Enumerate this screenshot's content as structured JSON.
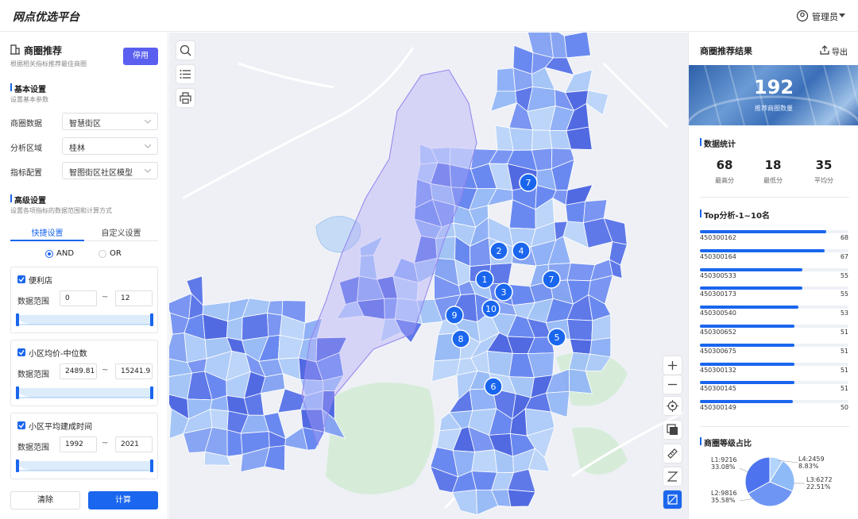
{
  "header": {
    "title": "网点优选平台",
    "user": "管理员"
  },
  "left_panel": {
    "title": "商圈推荐",
    "subtitle": "根据相关指标推荐最佳商圈",
    "toggle_button": "停用",
    "basic": {
      "title": "基本设置",
      "subtitle": "设置基本参数",
      "fields": [
        {
          "label": "商圈数据",
          "value": "智慧街区"
        },
        {
          "label": "分析区域",
          "value": "桂林"
        },
        {
          "label": "指标配置",
          "value": "智图街区社区模型"
        }
      ]
    },
    "advanced": {
      "title": "高级设置",
      "subtitle": "设置各项指标的数据范围和计算方式",
      "tabs": [
        "快捷设置",
        "自定义设置"
      ],
      "logic": [
        "AND",
        "OR"
      ],
      "separator": "~",
      "filters": [
        {
          "name": "便利店",
          "range_label": "数据范围",
          "min": "0",
          "max": "12"
        },
        {
          "name": "小区均价-中位数",
          "range_label": "数据范围",
          "min": "2489.81",
          "max": "15241.9"
        },
        {
          "name": "小区平均建成时间",
          "range_label": "数据范围",
          "min": "1992",
          "max": "2021"
        }
      ]
    },
    "buttons": [
      "清除",
      "计算"
    ]
  },
  "map": {
    "markers": [
      "7",
      "2",
      "4",
      "7",
      "1",
      "3",
      "10",
      "9",
      "8",
      "5",
      "6"
    ]
  },
  "right_panel": {
    "title": "商圈推荐结果",
    "export": "导出",
    "count": 192,
    "count_label": "推荐商圈数量",
    "stats_title": "数据统计",
    "stats": [
      {
        "value": 68,
        "label": "最高分"
      },
      {
        "value": 18,
        "label": "最低分"
      },
      {
        "value": 35,
        "label": "平均分"
      }
    ]
  },
  "chart_data": [
    {
      "type": "bar",
      "orientation": "horizontal",
      "title": "Top分析-1~10名",
      "categories": [
        "450300162",
        "450300164",
        "450300533",
        "450300173",
        "450300540",
        "450300652",
        "450300675",
        "450300132",
        "450300145",
        "450300149"
      ],
      "values": [
        68,
        67,
        55,
        55,
        53,
        51,
        51,
        51,
        51,
        50
      ],
      "xlim": [
        0,
        80
      ],
      "color": "#1a66ee"
    },
    {
      "type": "pie",
      "title": "商圈等级占比",
      "categories": [
        "L1:9216",
        "L2:9816",
        "L3:6272",
        "L4:2459"
      ],
      "values": [
        33.08,
        35.58,
        22.51,
        8.83
      ],
      "value_labels": [
        "33.08%",
        "35.58%",
        "22.51%",
        "8.83%"
      ],
      "colors": [
        "#4d74ee",
        "#6f95f4",
        "#8fbaf8",
        "#b3d4fb"
      ]
    }
  ]
}
